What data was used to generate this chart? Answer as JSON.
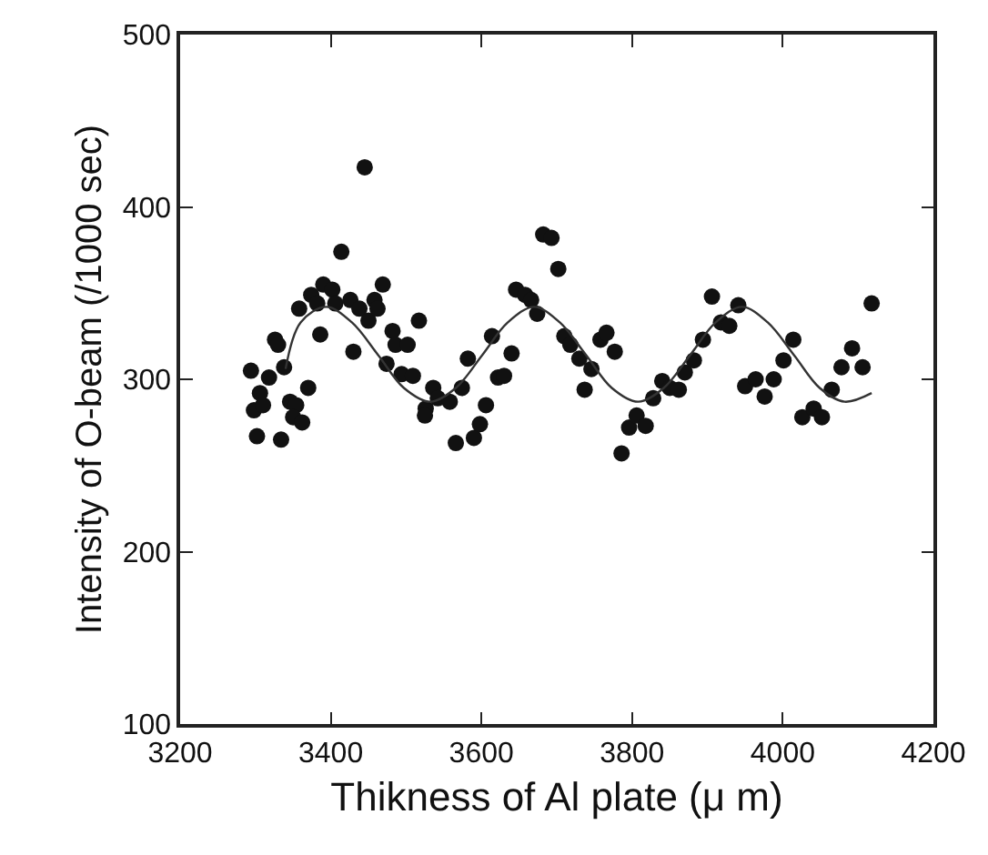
{
  "chart_data": {
    "type": "scatter",
    "xlabel": "Thikness of Al plate (μ m)",
    "ylabel": "Intensity of O-beam (/1000 sec)",
    "xlim": [
      3200,
      4200
    ],
    "xticks": [
      3200,
      3400,
      3600,
      3800,
      4000,
      4200
    ],
    "ylim": [
      100,
      500
    ],
    "yticks": [
      100,
      200,
      300,
      400,
      500
    ],
    "marker": "circle",
    "series": [
      {
        "color": "#111111",
        "x": [
          3294,
          3302,
          3334,
          3298,
          3306,
          3310,
          3318,
          3338,
          3326,
          3330,
          3346,
          3354,
          3350,
          3362,
          3370,
          3358,
          3386,
          3374,
          3382,
          3390,
          3402,
          3406,
          3414,
          3430,
          3426,
          3438,
          3445,
          3450,
          3458,
          3462,
          3469,
          3482,
          3474,
          3486,
          3502,
          3494,
          3509,
          3517,
          3536,
          3526,
          3525,
          3542,
          3558,
          3566,
          3574,
          3582,
          3590,
          3598,
          3606,
          3614,
          3622,
          3630,
          3640,
          3646,
          3658,
          3666,
          3674,
          3682,
          3693,
          3702,
          3710,
          3718,
          3730,
          3737,
          3746,
          3758,
          3766,
          3777,
          3786,
          3796,
          3806,
          3818,
          3828,
          3840,
          3850,
          3862,
          3870,
          3882,
          3894,
          3906,
          3918,
          3929,
          3941,
          3950,
          3964,
          3976,
          3988,
          4001,
          4014,
          4026,
          4041,
          4052,
          4065,
          4078,
          4092,
          4106,
          4118
        ],
        "values": [
          305,
          267,
          265,
          282,
          292,
          285,
          301,
          307,
          323,
          320,
          287,
          285,
          278,
          275,
          295,
          341,
          326,
          349,
          344,
          355,
          352,
          344,
          374,
          316,
          346,
          341,
          423,
          334,
          346,
          341,
          355,
          328,
          309,
          320,
          320,
          303,
          302,
          334,
          295,
          283,
          279,
          289,
          287,
          263,
          295,
          312,
          266,
          274,
          285,
          325,
          301,
          302,
          315,
          352,
          349,
          346,
          338,
          384,
          382,
          364,
          325,
          320,
          312,
          294,
          306,
          323,
          327,
          316,
          257,
          272,
          279,
          273,
          289,
          299,
          295,
          294,
          304,
          311,
          323,
          348,
          333,
          331,
          343,
          296,
          300,
          290,
          300,
          311,
          323,
          278,
          283,
          278,
          294,
          307,
          318,
          307,
          344
        ]
      },
      {
        "type": "line",
        "color": "#333333",
        "marker": "none",
        "line_style": "solid",
        "x": [
          3340,
          3360,
          3394,
          3428,
          3463,
          3497,
          3532,
          3566,
          3601,
          3635,
          3670,
          3704,
          3739,
          3773,
          3808,
          3842,
          3877,
          3911,
          3946,
          3980,
          4015,
          4049,
          4082,
          4118
        ],
        "values": [
          306,
          333,
          342,
          333,
          314,
          295,
          287,
          295,
          314,
          333,
          342,
          333,
          314,
          295,
          287,
          295,
          314,
          333,
          342,
          333,
          314,
          295,
          287,
          292
        ]
      }
    ]
  }
}
